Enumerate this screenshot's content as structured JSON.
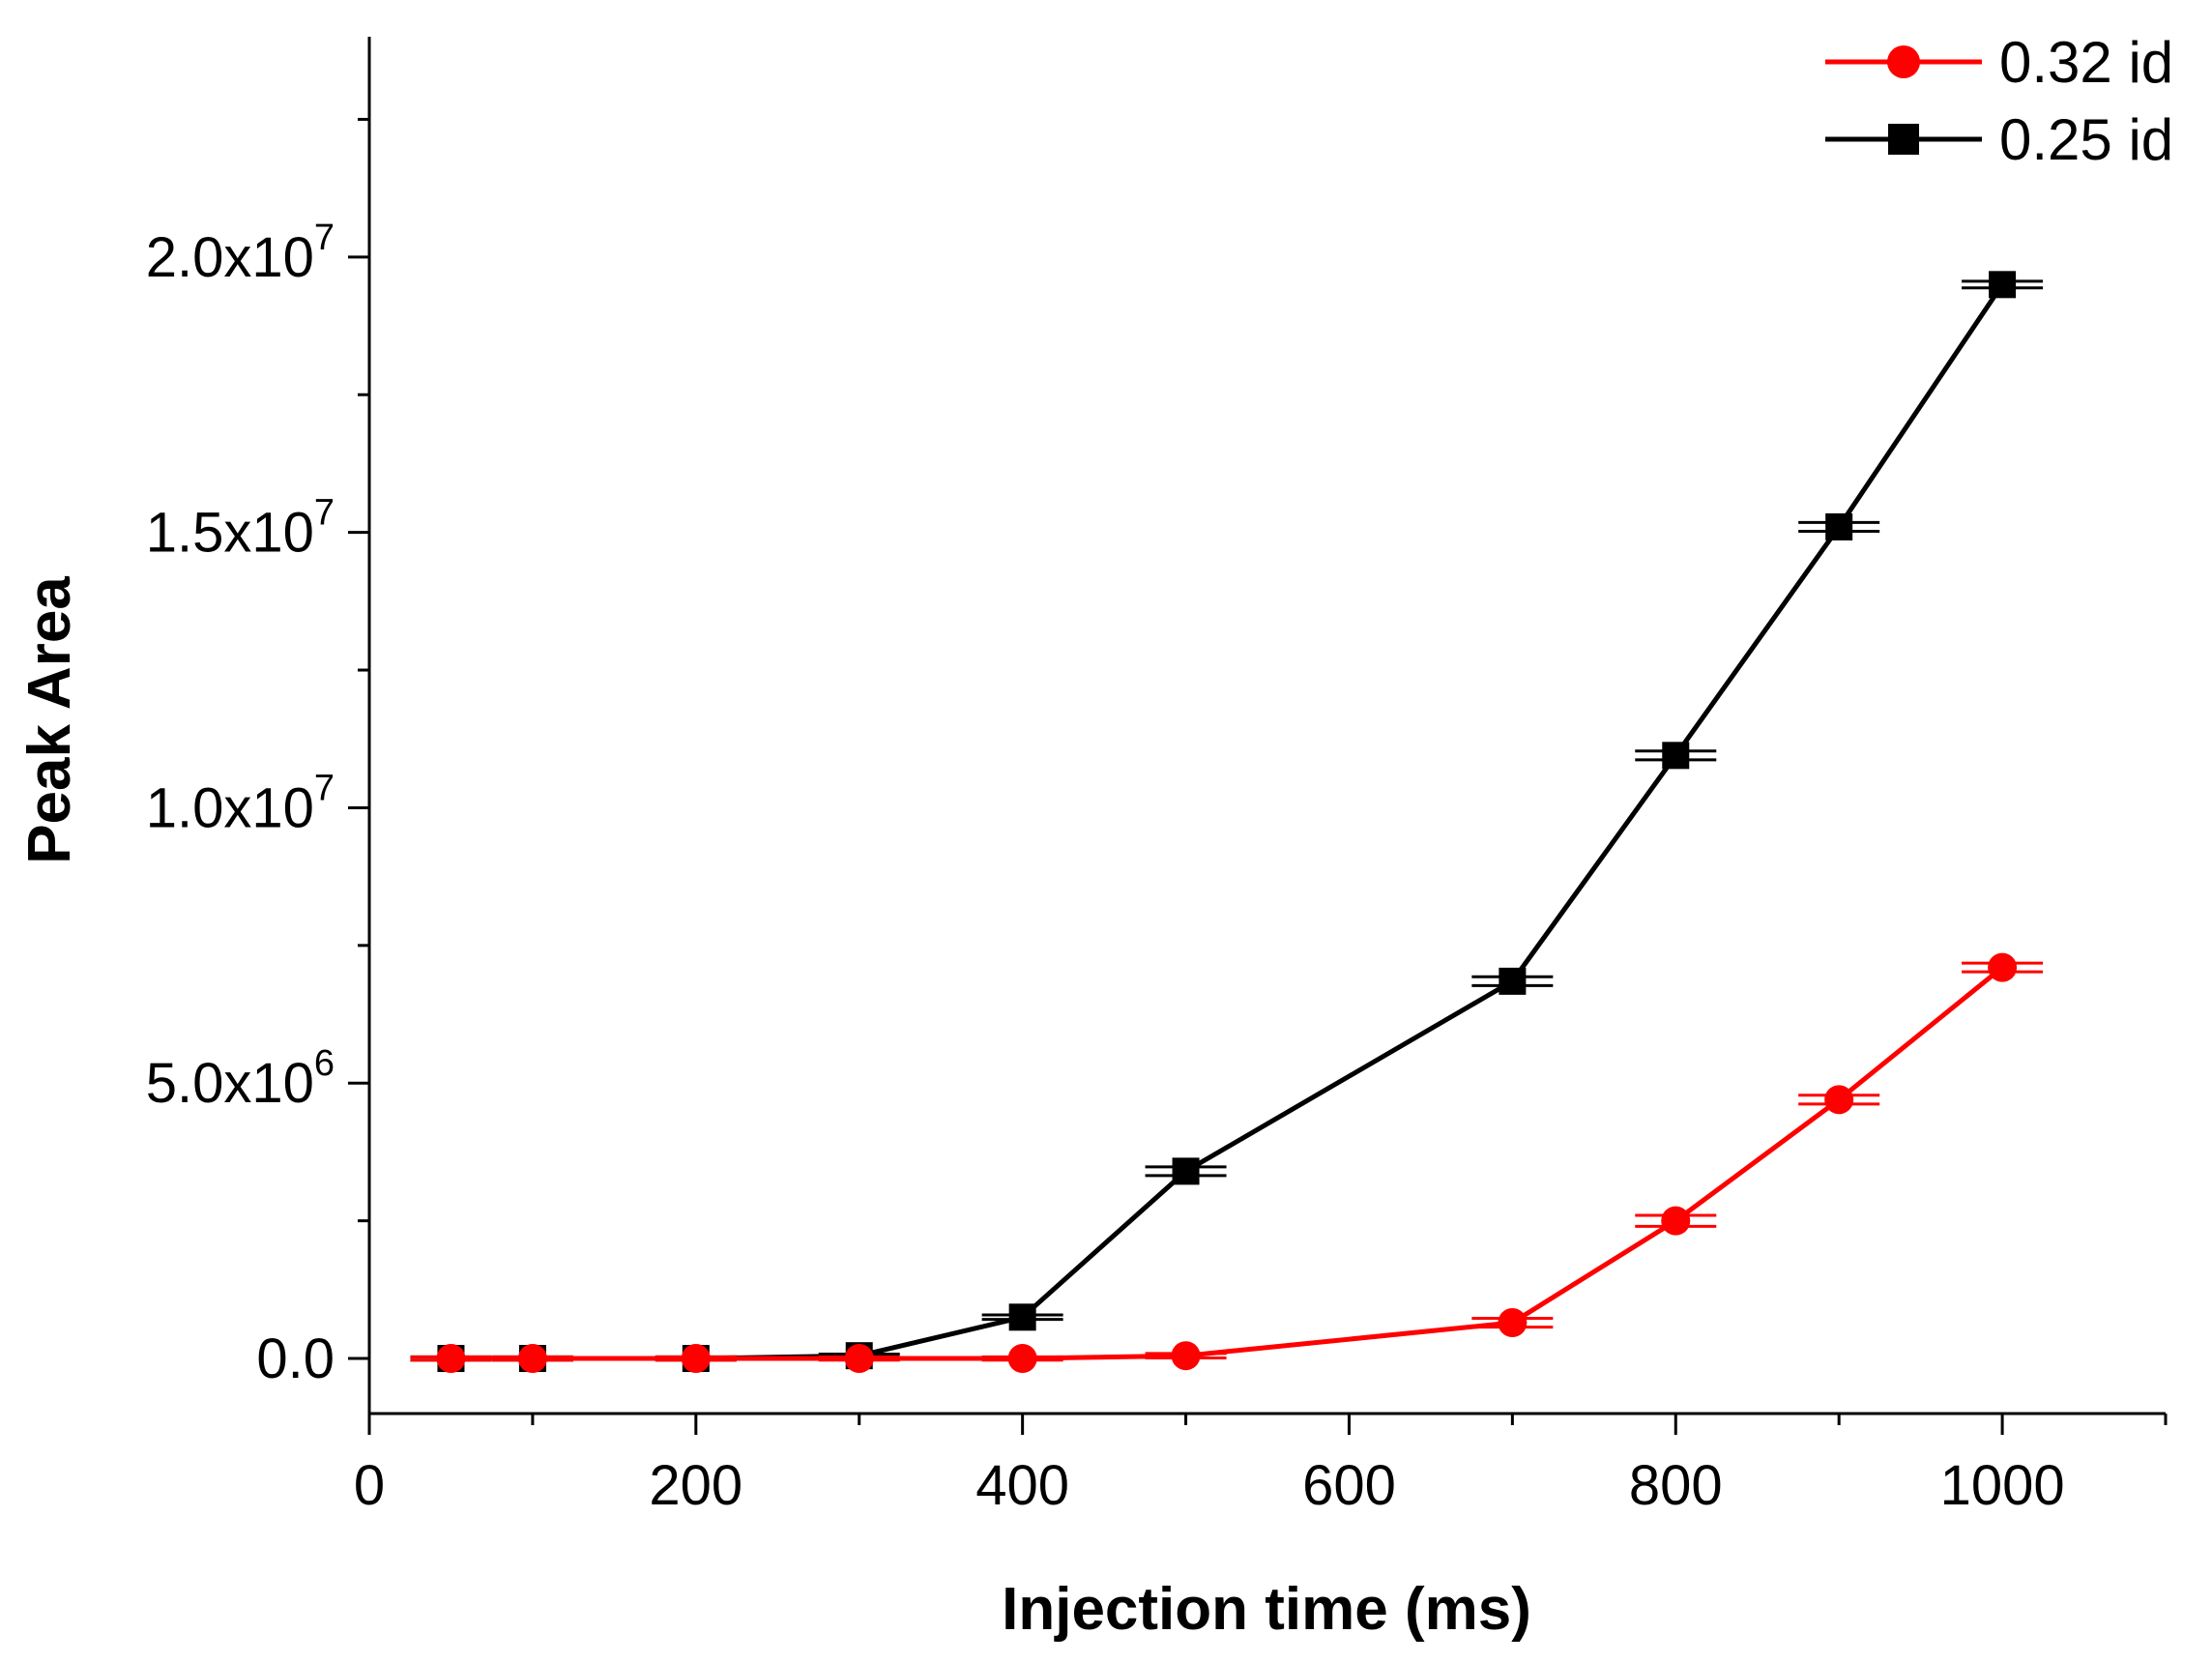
{
  "chart_data": {
    "type": "line",
    "xlabel": "Injection time (ms)",
    "ylabel": "Peak Area",
    "xlim": [
      0,
      1100
    ],
    "ylim": [
      -1000000,
      24000000
    ],
    "x_ticks": [
      0,
      200,
      400,
      600,
      800,
      1000
    ],
    "x_tick_labels": [
      "0",
      "200",
      "400",
      "600",
      "800",
      "1000"
    ],
    "y_ticks": [
      0,
      5000000,
      10000000,
      15000000,
      20000000
    ],
    "y_tick_labels": [
      {
        "mantissa": "0.0",
        "exp": ""
      },
      {
        "mantissa": "5.0x10",
        "exp": "6"
      },
      {
        "mantissa": "1.0x10",
        "exp": "7"
      },
      {
        "mantissa": "1.5x10",
        "exp": "7"
      },
      {
        "mantissa": "2.0x10",
        "exp": "7"
      }
    ],
    "legend_position": "top-right",
    "grid": false,
    "series": [
      {
        "name": "0.32 id",
        "color": "#ff0000",
        "marker": "circle",
        "x": [
          50,
          100,
          200,
          300,
          400,
          500,
          700,
          800,
          900,
          1000
        ],
        "y": [
          0,
          0,
          0,
          0,
          0,
          50000,
          650000,
          2500000,
          4700000,
          7100000
        ],
        "err": [
          30000,
          30000,
          30000,
          30000,
          30000,
          40000,
          80000,
          100000,
          80000,
          80000
        ]
      },
      {
        "name": "0.25 id",
        "color": "#000000",
        "marker": "square",
        "x": [
          50,
          100,
          200,
          300,
          400,
          500,
          700,
          800,
          900,
          1000
        ],
        "y": [
          0,
          0,
          0,
          50000,
          750000,
          3400000,
          6850000,
          10950000,
          15100000,
          19500000
        ],
        "err": [
          30000,
          30000,
          30000,
          30000,
          40000,
          80000,
          80000,
          80000,
          80000,
          60000
        ]
      }
    ]
  }
}
